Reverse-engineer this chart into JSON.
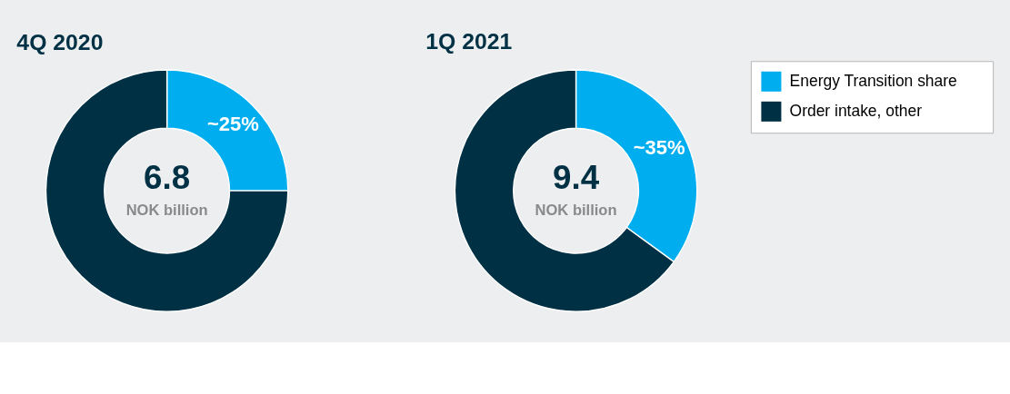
{
  "chart_data": [
    {
      "type": "donut",
      "title": "4Q 2020",
      "categories": [
        null,
        null
      ],
      "values": [
        25,
        75
      ],
      "colors": [
        "#00aeef",
        "#003044"
      ],
      "value_labels": [
        "~25%",
        null
      ],
      "annotations": [
        "6.8",
        "NOK billion"
      ],
      "legend": false
    },
    {
      "type": "donut",
      "title": "1Q 2021",
      "categories": [
        "Energy Transition share",
        "Order intake, other"
      ],
      "values": [
        35,
        65
      ],
      "colors": [
        "#00aeef",
        "#003044"
      ],
      "value_labels": [
        "~35%",
        null
      ],
      "annotations": [
        "9.4",
        "NOK billion"
      ],
      "legend": "top right"
    }
  ]
}
